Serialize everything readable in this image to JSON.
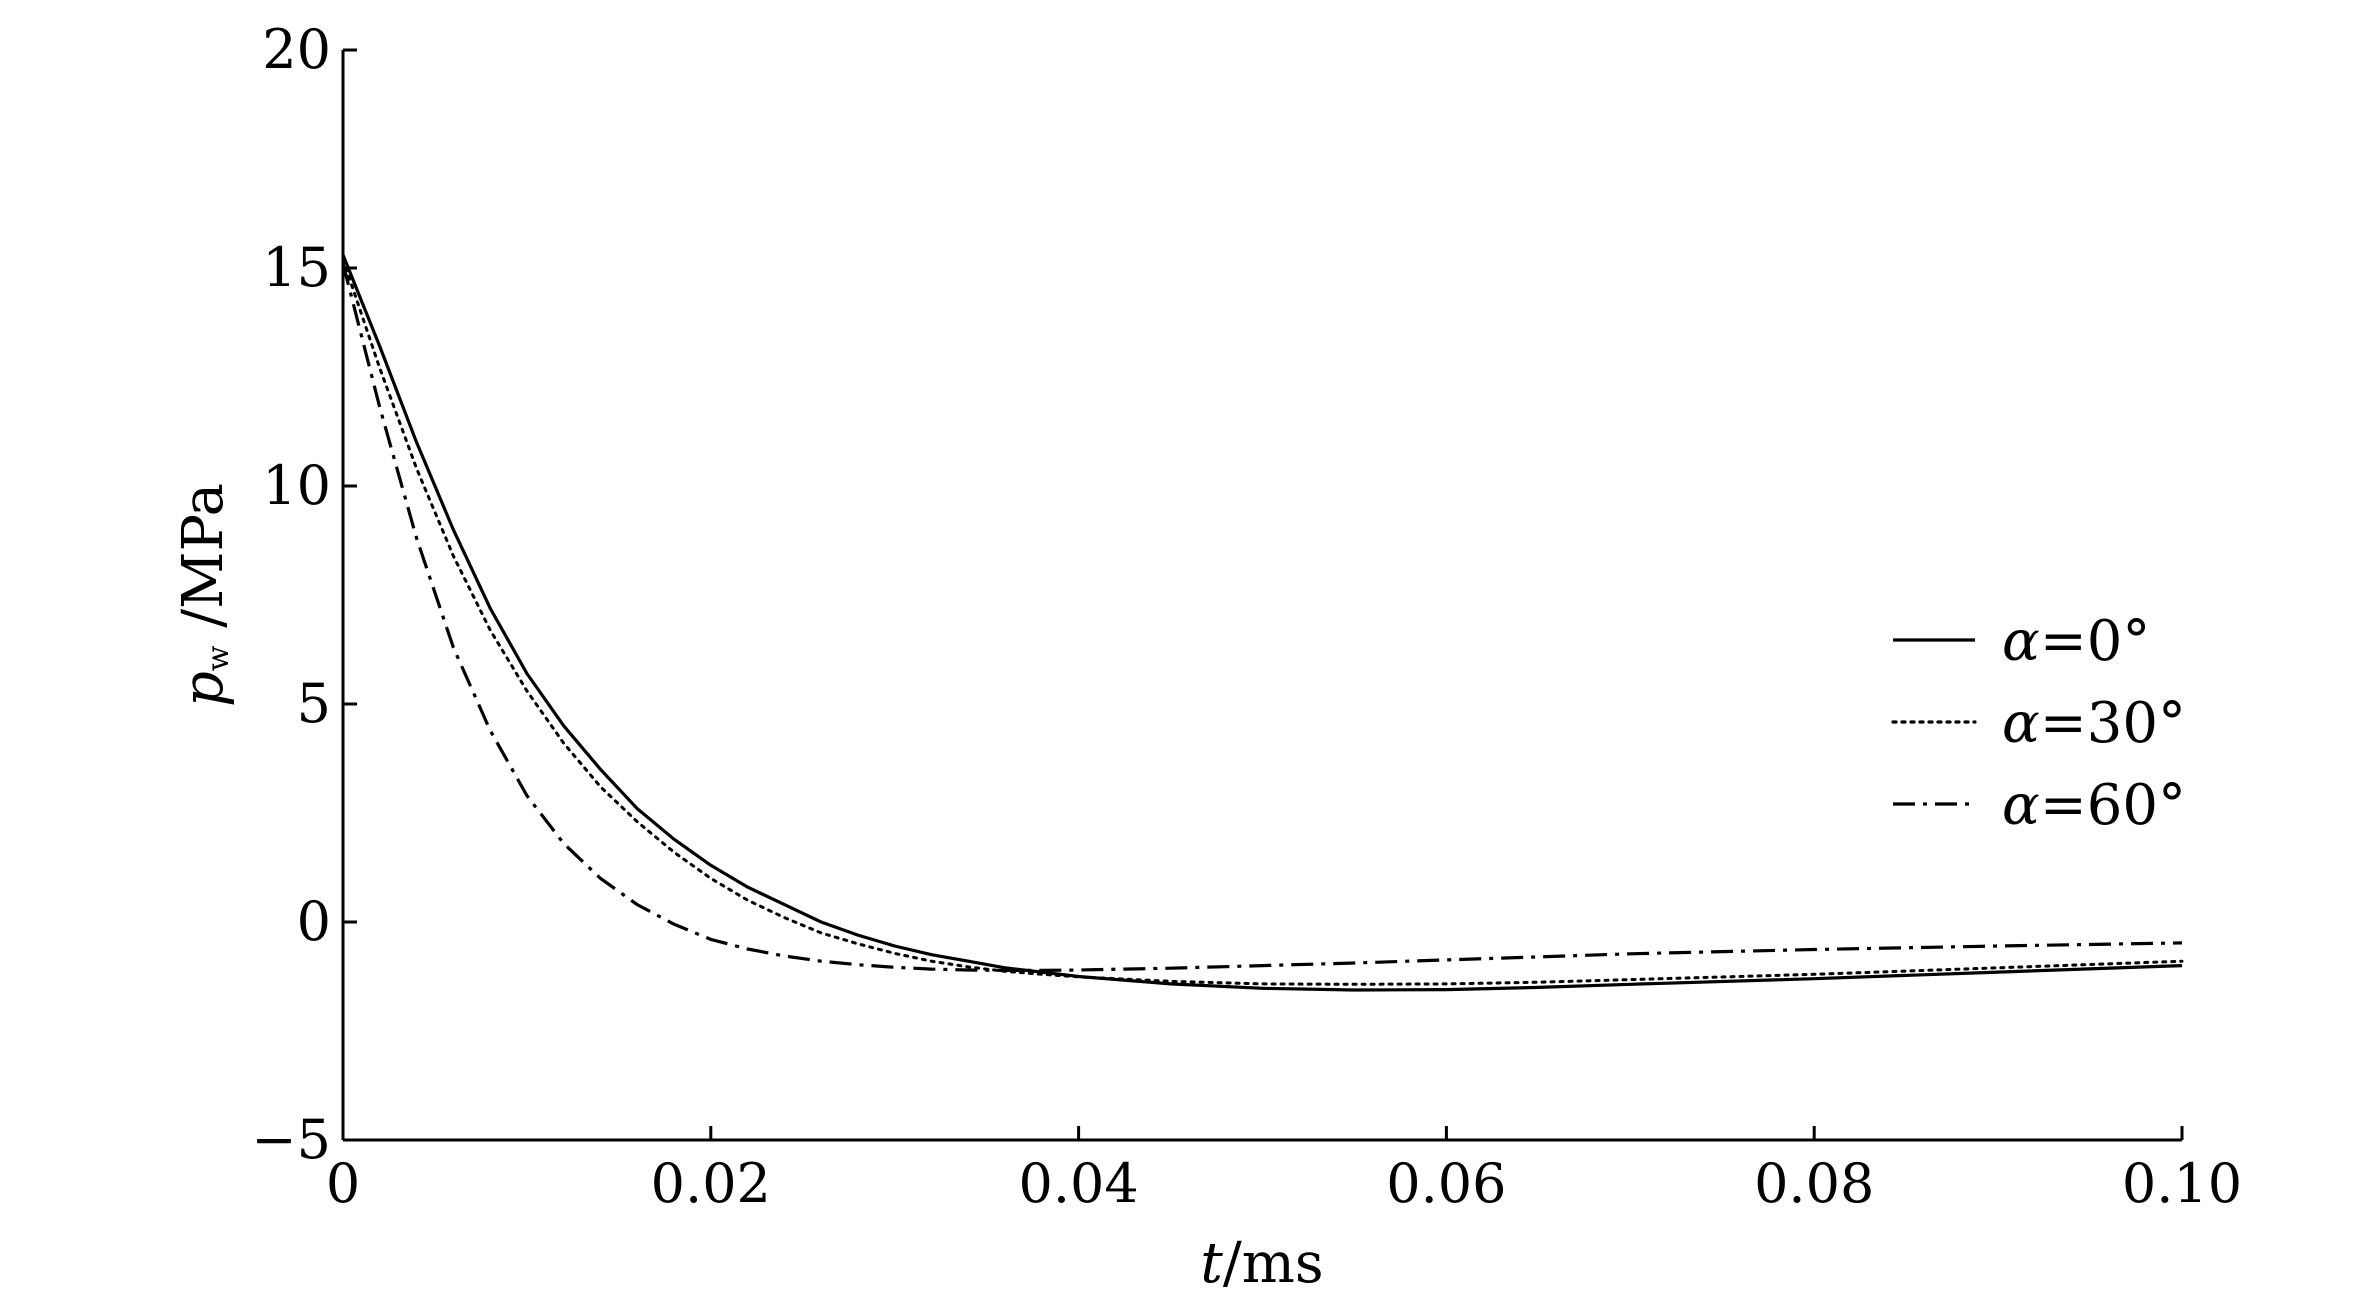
{
  "chart_data": {
    "type": "line",
    "xlabel": {
      "symbol": "t",
      "unit": "/ms"
    },
    "ylabel": {
      "symbol": "p",
      "subscript": "w",
      "unit": " /MPa"
    },
    "xlim": [
      0,
      0.1
    ],
    "ylim": [
      -5,
      20
    ],
    "xticks": [
      0,
      0.02,
      0.04,
      0.06,
      0.08,
      0.1
    ],
    "xtick_labels": [
      "0",
      "0.02",
      "0.04",
      "0.06",
      "0.08",
      "0.10"
    ],
    "yticks": [
      -5,
      0,
      5,
      10,
      15,
      20
    ],
    "ytick_labels": [
      "−5",
      "0",
      "5",
      "10",
      "15",
      "20"
    ],
    "grid": false,
    "legend_position": "right",
    "series": [
      {
        "name": "α=0°",
        "symbol": "α",
        "rest": "=0°",
        "style": "solid",
        "x": [
          0,
          0.002,
          0.004,
          0.006,
          0.008,
          0.01,
          0.012,
          0.014,
          0.016,
          0.018,
          0.02,
          0.022,
          0.024,
          0.026,
          0.028,
          0.03,
          0.032,
          0.034,
          0.036,
          0.038,
          0.04,
          0.045,
          0.05,
          0.055,
          0.06,
          0.065,
          0.07,
          0.08,
          0.09,
          0.1
        ],
        "y": [
          15.3,
          13.2,
          11.0,
          9.0,
          7.2,
          5.7,
          4.5,
          3.5,
          2.6,
          1.9,
          1.3,
          0.8,
          0.4,
          0.0,
          -0.3,
          -0.55,
          -0.75,
          -0.9,
          -1.05,
          -1.15,
          -1.25,
          -1.42,
          -1.52,
          -1.56,
          -1.55,
          -1.5,
          -1.43,
          -1.3,
          -1.15,
          -1.0
        ]
      },
      {
        "name": "α=30°",
        "symbol": "α",
        "rest": "=30°",
        "style": "dotted",
        "x": [
          0,
          0.002,
          0.004,
          0.006,
          0.008,
          0.01,
          0.012,
          0.014,
          0.016,
          0.018,
          0.02,
          0.022,
          0.024,
          0.026,
          0.028,
          0.03,
          0.032,
          0.034,
          0.036,
          0.038,
          0.04,
          0.045,
          0.05,
          0.055,
          0.06,
          0.065,
          0.07,
          0.08,
          0.09,
          0.1
        ],
        "y": [
          15.2,
          12.7,
          10.4,
          8.4,
          6.7,
          5.3,
          4.1,
          3.1,
          2.3,
          1.6,
          1.0,
          0.5,
          0.1,
          -0.25,
          -0.5,
          -0.72,
          -0.9,
          -1.03,
          -1.13,
          -1.2,
          -1.26,
          -1.36,
          -1.42,
          -1.43,
          -1.42,
          -1.38,
          -1.32,
          -1.2,
          -1.05,
          -0.9
        ]
      },
      {
        "name": "α=60°",
        "symbol": "α",
        "rest": "=60°",
        "style": "dashdot",
        "x": [
          0,
          0.002,
          0.004,
          0.006,
          0.008,
          0.01,
          0.012,
          0.014,
          0.016,
          0.018,
          0.02,
          0.022,
          0.024,
          0.026,
          0.028,
          0.03,
          0.032,
          0.034,
          0.036,
          0.038,
          0.04,
          0.045,
          0.05,
          0.055,
          0.06,
          0.065,
          0.07,
          0.08,
          0.09,
          0.1
        ],
        "y": [
          15.1,
          11.8,
          8.8,
          6.3,
          4.4,
          2.9,
          1.8,
          1.0,
          0.4,
          -0.05,
          -0.4,
          -0.62,
          -0.78,
          -0.9,
          -0.98,
          -1.04,
          -1.08,
          -1.1,
          -1.11,
          -1.11,
          -1.1,
          -1.06,
          -1.0,
          -0.94,
          -0.87,
          -0.8,
          -0.73,
          -0.63,
          -0.55,
          -0.48
        ]
      }
    ]
  }
}
